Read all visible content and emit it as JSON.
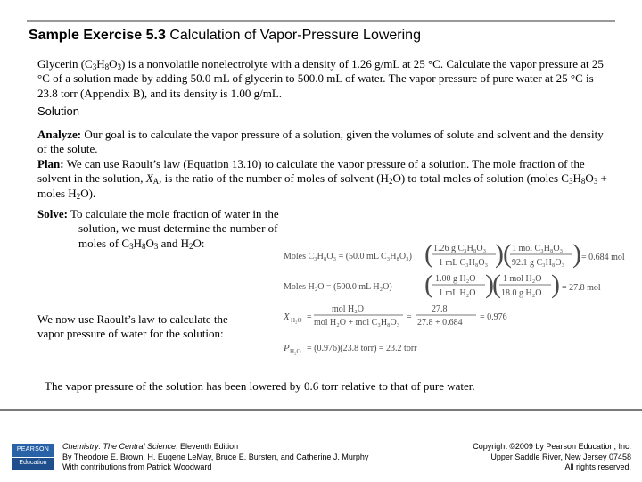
{
  "header": {
    "exercise_label": "Sample Exercise 5.3",
    "exercise_title": "Calculation of Vapor-Pressure Lowering"
  },
  "problem": {
    "text_1": "Glycerin (C",
    "sub_c": "3",
    "text_2": "H",
    "sub_h": "8",
    "text_3": "O",
    "sub_o": "3",
    "text_4": ") is a nonvolatile nonelectrolyte with a density of 1.26 g/mL at 25 °C. Calculate the vapor pressure at 25 °C of a solution made by adding 50.0 mL of glycerin to 500.0 mL of water. The vapor pressure of pure water at 25 °C is 23.8 torr (Appendix B), and its density is 1.00 g/mL."
  },
  "solution_label": "Solution",
  "analyze": {
    "label": "Analyze:",
    "text": " Our goal is to calculate the vapor pressure of a solution, given the volumes of solute and solvent and the density of the solute."
  },
  "plan": {
    "label": "Plan:",
    "text_1": " We can use Raoult’s law (Equation 13.10) to calculate the vapor pressure of a solution. The mole fraction of the solvent in the solution, ",
    "x_symbol": "X",
    "x_sub": "A",
    "text_2": ", is the ratio of the number of moles of solvent (H",
    "h2o_sub": "2",
    "text_3": "O) to total moles of solution (moles C",
    "c_sub": "3",
    "text_4": "H",
    "h_sub": "8",
    "text_5": "O",
    "o_sub": "3",
    "text_6": " + moles H",
    "h2_sub": "2",
    "text_7": "O)."
  },
  "solve": {
    "label": "Solve:",
    "text_1": " To calculate the mole fraction of water in the",
    "text_2": "solution, we must determine the number of",
    "text_3": "moles of C",
    "c_sub": "3",
    "text_4": "H",
    "h_sub": "8",
    "text_5": "O",
    "o_sub": "3",
    "text_6": " and H",
    "h2_sub": "2",
    "text_7": "O:"
  },
  "calculations": {
    "glycerin_moles_lhs": "Moles C₃H₈O₃ = (50.0 mL C₃H₈O₃)",
    "glycerin_density_num": "1.26 g C₃H₈O₃",
    "glycerin_density_den": "1 mL C₃H₈O₃",
    "glycerin_mm_num": "1 mol C₃H₈O₃",
    "glycerin_mm_den": "92.1 g C₃H₈O₃",
    "glycerin_result": "= 0.684 mol",
    "water_moles_lhs": "Moles H₂O = (500.0 mL H₂O)",
    "water_density_num": "1.00 g H₂O",
    "water_density_den": "1 mL H₂O",
    "water_mm_num": "1 mol H₂O",
    "water_mm_den": "18.0 g H₂O",
    "water_result": "= 27.8 mol",
    "mole_fraction_lhs": "X",
    "mole_fraction_sub": "H₂O",
    "mf_def_num": "mol H₂O",
    "mf_def_den": "mol H₂O + mol C₃H₈O₃",
    "mf_val_num": "27.8",
    "mf_val_den": "27.8 + 0.684",
    "mf_result": "= 0.976",
    "vp_lhs": "P",
    "vp_sub": "H₂O",
    "vp_rhs": "= (0.976)(23.8 torr) = 23.2 torr"
  },
  "raoult_text": "We now use Raoult’s law to calculate the vapor pressure of water for the solution:",
  "conclusion": "The vapor pressure of the solution has been lowered by 0.6 torr relative to that of pure water.",
  "footer": {
    "logo_top": "PEARSON",
    "logo_bottom": "Education",
    "book_title": "Chemistry: The Central Science",
    "edition": ", Eleventh Edition",
    "authors": "By Theodore E. Brown, H. Eugene LeMay, Bruce E. Bursten, and Catherine J. Murphy",
    "contributions": "With contributions from Patrick Woodward",
    "copyright": "Copyright ©2009 by Pearson Education, Inc.",
    "address": "Upper Saddle River, New Jersey 07458",
    "rights": "All rights reserved."
  }
}
